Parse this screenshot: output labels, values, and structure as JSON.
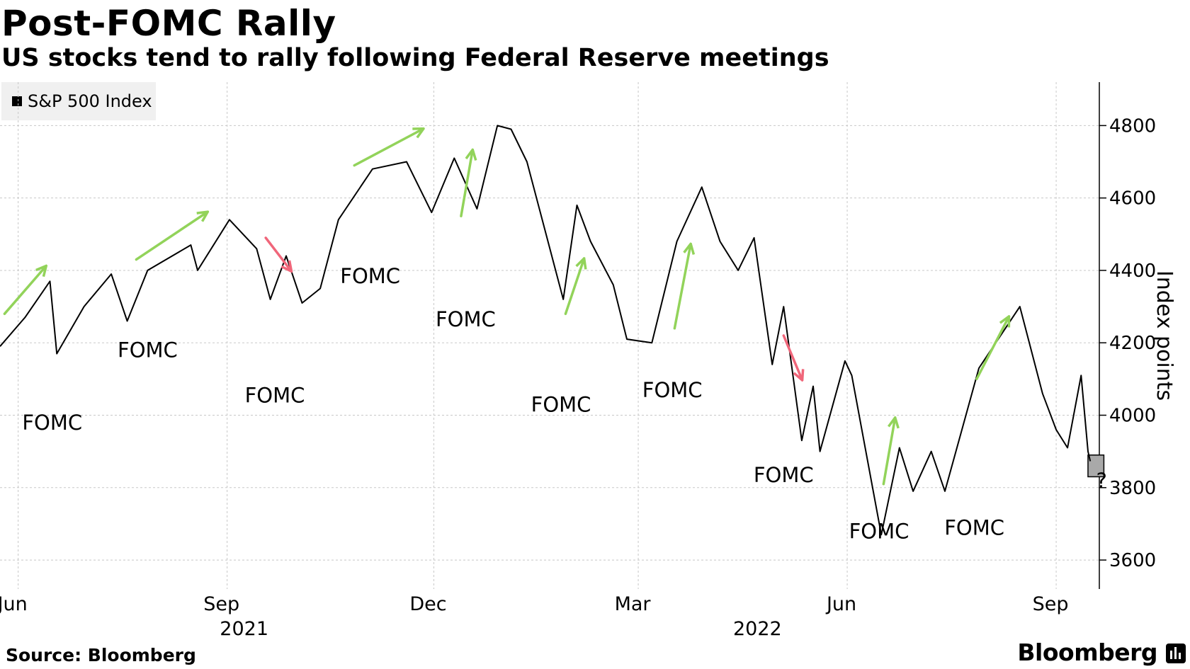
{
  "header": {
    "title": "Post-FOMC Rally",
    "subtitle": "US stocks tend to rally following Federal Reserve meetings"
  },
  "legend": {
    "label": "S&P 500 Index",
    "color": "#000000"
  },
  "footer": {
    "source": "Source: Bloomberg",
    "brand": "Bloomberg"
  },
  "colors": {
    "up_arrow": "#92d35a",
    "down_arrow": "#f0667a",
    "grid": "#c8c8c8",
    "box": "#a9a9a9"
  },
  "chart_data": {
    "type": "line",
    "title": "Post-FOMC Rally",
    "subtitle": "US stocks tend to rally following Federal Reserve meetings",
    "ylabel": "Index points",
    "ylim": [
      3520,
      4920
    ],
    "yticks": [
      3600,
      3800,
      4000,
      4200,
      4400,
      4600,
      4800
    ],
    "xlim": [
      "2021-05-24",
      "2022-09-20"
    ],
    "xticks": [
      {
        "date": "2021-06-01",
        "label": "Jun"
      },
      {
        "date": "2021-09-01",
        "label": "Sep"
      },
      {
        "date": "2021-12-01",
        "label": "Dec"
      },
      {
        "date": "2022-03-01",
        "label": "Mar"
      },
      {
        "date": "2022-06-01",
        "label": "Jun"
      },
      {
        "date": "2022-09-01",
        "label": "Sep"
      }
    ],
    "year_labels": [
      {
        "date": "2021-09-01",
        "label": "2021"
      },
      {
        "date": "2022-04-15",
        "label": "2022"
      }
    ],
    "grid": true,
    "legend_position": "top-left",
    "series": [
      {
        "name": "S&P 500 Index",
        "color": "#000000",
        "points": [
          [
            "2021-05-24",
            4190
          ],
          [
            "2021-06-04",
            4270
          ],
          [
            "2021-06-15",
            4370
          ],
          [
            "2021-06-18",
            4170
          ],
          [
            "2021-06-30",
            4300
          ],
          [
            "2021-07-12",
            4390
          ],
          [
            "2021-07-19",
            4260
          ],
          [
            "2021-07-28",
            4400
          ],
          [
            "2021-08-16",
            4470
          ],
          [
            "2021-08-19",
            4400
          ],
          [
            "2021-09-02",
            4540
          ],
          [
            "2021-09-14",
            4460
          ],
          [
            "2021-09-20",
            4320
          ],
          [
            "2021-09-27",
            4440
          ],
          [
            "2021-10-04",
            4310
          ],
          [
            "2021-10-12",
            4350
          ],
          [
            "2021-10-20",
            4540
          ],
          [
            "2021-11-04",
            4680
          ],
          [
            "2021-11-19",
            4700
          ],
          [
            "2021-11-30",
            4560
          ],
          [
            "2021-12-10",
            4710
          ],
          [
            "2021-12-20",
            4570
          ],
          [
            "2021-12-29",
            4800
          ],
          [
            "2022-01-04",
            4790
          ],
          [
            "2022-01-11",
            4700
          ],
          [
            "2022-01-27",
            4320
          ],
          [
            "2022-02-02",
            4580
          ],
          [
            "2022-02-08",
            4480
          ],
          [
            "2022-02-18",
            4360
          ],
          [
            "2022-02-24",
            4210
          ],
          [
            "2022-03-07",
            4200
          ],
          [
            "2022-03-18",
            4480
          ],
          [
            "2022-03-29",
            4630
          ],
          [
            "2022-04-06",
            4480
          ],
          [
            "2022-04-14",
            4400
          ],
          [
            "2022-04-21",
            4490
          ],
          [
            "2022-04-29",
            4140
          ],
          [
            "2022-05-04",
            4300
          ],
          [
            "2022-05-12",
            3930
          ],
          [
            "2022-05-17",
            4080
          ],
          [
            "2022-05-20",
            3900
          ],
          [
            "2022-05-31",
            4150
          ],
          [
            "2022-06-03",
            4110
          ],
          [
            "2022-06-16",
            3670
          ],
          [
            "2022-06-24",
            3910
          ],
          [
            "2022-06-30",
            3790
          ],
          [
            "2022-07-08",
            3900
          ],
          [
            "2022-07-14",
            3790
          ],
          [
            "2022-07-29",
            4130
          ],
          [
            "2022-08-16",
            4300
          ],
          [
            "2022-08-26",
            4060
          ],
          [
            "2022-09-01",
            3960
          ],
          [
            "2022-09-06",
            3910
          ],
          [
            "2022-09-12",
            4110
          ],
          [
            "2022-09-15",
            3900
          ],
          [
            "2022-09-16",
            3873
          ]
        ]
      }
    ],
    "annotations": [
      {
        "type": "label",
        "text": "FOMC",
        "date": "2021-06-16",
        "value": 3960
      },
      {
        "type": "label",
        "text": "FOMC",
        "date": "2021-07-28",
        "value": 4160
      },
      {
        "type": "label",
        "text": "FOMC",
        "date": "2021-09-22",
        "value": 4035
      },
      {
        "type": "label",
        "text": "FOMC",
        "date": "2021-11-03",
        "value": 4365
      },
      {
        "type": "label",
        "text": "FOMC",
        "date": "2021-12-15",
        "value": 4245
      },
      {
        "type": "label",
        "text": "FOMC",
        "date": "2022-01-26",
        "value": 4010
      },
      {
        "type": "label",
        "text": "FOMC",
        "date": "2022-03-16",
        "value": 4050
      },
      {
        "type": "label",
        "text": "FOMC",
        "date": "2022-05-04",
        "value": 3815
      },
      {
        "type": "label",
        "text": "FOMC",
        "date": "2022-06-15",
        "value": 3660
      },
      {
        "type": "label",
        "text": "FOMC",
        "date": "2022-07-27",
        "value": 3670
      },
      {
        "type": "label",
        "text": "?",
        "date": "2022-09-21",
        "value": 3800
      },
      {
        "type": "arrow",
        "direction": "up",
        "from": [
          "2021-05-26",
          4280
        ],
        "to": [
          "2021-06-13",
          4410
        ]
      },
      {
        "type": "arrow",
        "direction": "up",
        "from": [
          "2021-07-23",
          4430
        ],
        "to": [
          "2021-08-23",
          4560
        ]
      },
      {
        "type": "arrow",
        "direction": "down",
        "from": [
          "2021-09-18",
          4490
        ],
        "to": [
          "2021-09-29",
          4400
        ]
      },
      {
        "type": "arrow",
        "direction": "up",
        "from": [
          "2021-10-27",
          4690
        ],
        "to": [
          "2021-11-26",
          4790
        ]
      },
      {
        "type": "arrow",
        "direction": "up",
        "from": [
          "2021-12-13",
          4550
        ],
        "to": [
          "2021-12-18",
          4730
        ]
      },
      {
        "type": "arrow",
        "direction": "up",
        "from": [
          "2022-01-28",
          4280
        ],
        "to": [
          "2022-02-05",
          4430
        ]
      },
      {
        "type": "arrow",
        "direction": "up",
        "from": [
          "2022-03-17",
          4240
        ],
        "to": [
          "2022-03-24",
          4470
        ]
      },
      {
        "type": "arrow",
        "direction": "down",
        "from": [
          "2022-05-04",
          4220
        ],
        "to": [
          "2022-05-12",
          4100
        ]
      },
      {
        "type": "arrow",
        "direction": "up",
        "from": [
          "2022-06-17",
          3810
        ],
        "to": [
          "2022-06-22",
          3990
        ]
      },
      {
        "type": "arrow",
        "direction": "up",
        "from": [
          "2022-07-28",
          4100
        ],
        "to": [
          "2022-08-11",
          4270
        ]
      },
      {
        "type": "box",
        "from": [
          "2022-09-15",
          3830
        ],
        "to": [
          "2022-09-22",
          3890
        ]
      }
    ]
  }
}
